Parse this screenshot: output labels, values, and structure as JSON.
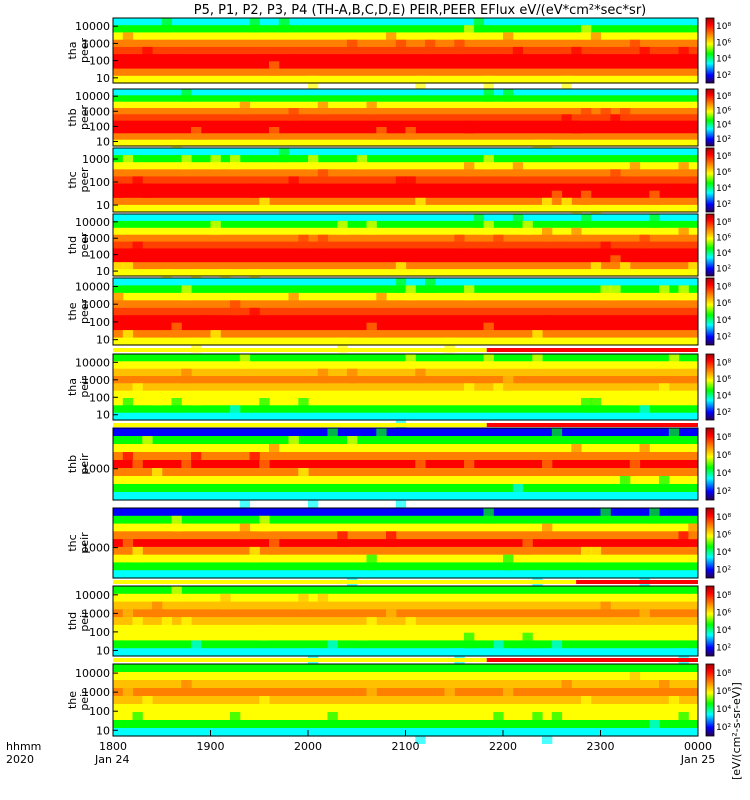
{
  "chart_data": {
    "type": "heatmap",
    "title": "P5, P1, P2, P3, P4 (TH-A,B,C,D,E) PEIR,PEER EFlux eV/(eV*cm²*sec*sr)",
    "x_axis": {
      "row1_label": "hhmm",
      "row2_label": "2020",
      "ticks": [
        "1800",
        "1900",
        "2000",
        "2100",
        "2200",
        "2300",
        "0000"
      ],
      "dates": [
        "Jan 24",
        "Jan 25"
      ],
      "range_minutes": [
        0,
        360
      ]
    },
    "colorbar": {
      "scale": "log",
      "tick_labels": [
        "10²",
        "10⁴",
        "10⁶",
        "10⁸"
      ],
      "label": "[eV/(cm²-s-sr-eV)]",
      "colors": [
        "#000080",
        "#0000ff",
        "#00ffff",
        "#00ff00",
        "#ffff00",
        "#ff8000",
        "#ff0000",
        "#b00000"
      ]
    },
    "panels": [
      {
        "probe": "tha",
        "species": "peer",
        "yticks": [
          "10",
          "100",
          "1000",
          "10000"
        ],
        "ylim": [
          5,
          30000
        ]
      },
      {
        "probe": "thb",
        "species": "peer",
        "yticks": [
          "10",
          "100",
          "1000",
          "10000"
        ],
        "ylim": [
          5,
          30000
        ]
      },
      {
        "probe": "thc",
        "species": "peer",
        "yticks": [
          "10",
          "100",
          "1000"
        ],
        "ylim": [
          5,
          3000
        ]
      },
      {
        "probe": "thd",
        "species": "peer",
        "yticks": [
          "10",
          "100",
          "1000",
          "10000"
        ],
        "ylim": [
          5,
          30000
        ]
      },
      {
        "probe": "the",
        "species": "peer",
        "yticks": [
          "10",
          "100",
          "1000",
          "10000"
        ],
        "ylim": [
          5,
          30000
        ]
      },
      {
        "probe": "tha",
        "species": "peir",
        "yticks": [
          "10",
          "100",
          "1000",
          "10000"
        ],
        "ylim": [
          5,
          30000
        ]
      },
      {
        "probe": "thb",
        "species": "peir",
        "yticks": [
          "1000"
        ],
        "ylim": [
          100,
          20000
        ]
      },
      {
        "probe": "thc",
        "species": "peir",
        "yticks": [
          "1000"
        ],
        "ylim": [
          100,
          20000
        ]
      },
      {
        "probe": "thd",
        "species": "peir",
        "yticks": [
          "10",
          "100",
          "1000",
          "10000"
        ],
        "ylim": [
          5,
          30000
        ]
      },
      {
        "probe": "the",
        "species": "peir",
        "yticks": [
          "10",
          "100",
          "1000",
          "10000"
        ],
        "ylim": [
          5,
          30000
        ]
      }
    ],
    "mode_bars_red_start": [
      "2150",
      "2150",
      "2245",
      "2150"
    ]
  }
}
